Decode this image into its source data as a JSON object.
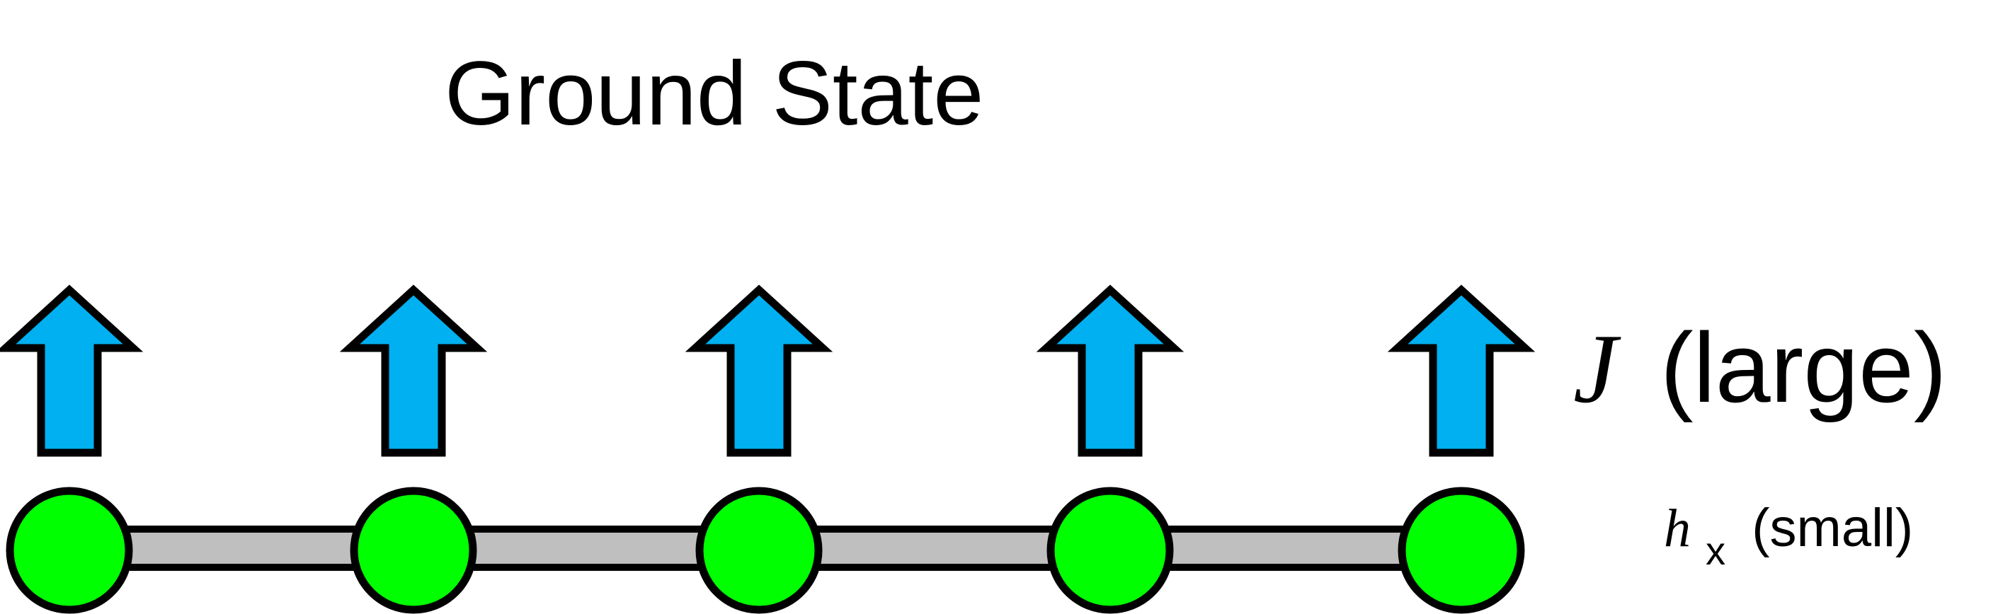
{
  "title": "Ground State",
  "coupling_label": {
    "symbol": "J",
    "qualifier": "(large)"
  },
  "field_label": {
    "symbol": "h",
    "subscript": "x",
    "qualifier": "(small)"
  },
  "spins": [
    {
      "direction": "up"
    },
    {
      "direction": "up"
    },
    {
      "direction": "up"
    },
    {
      "direction": "up"
    },
    {
      "direction": "up"
    }
  ],
  "colors": {
    "arrow_fill": "#00B0F0",
    "site_fill": "#00FF00",
    "bond_fill": "#BFBFBF",
    "outline": "#000000"
  }
}
